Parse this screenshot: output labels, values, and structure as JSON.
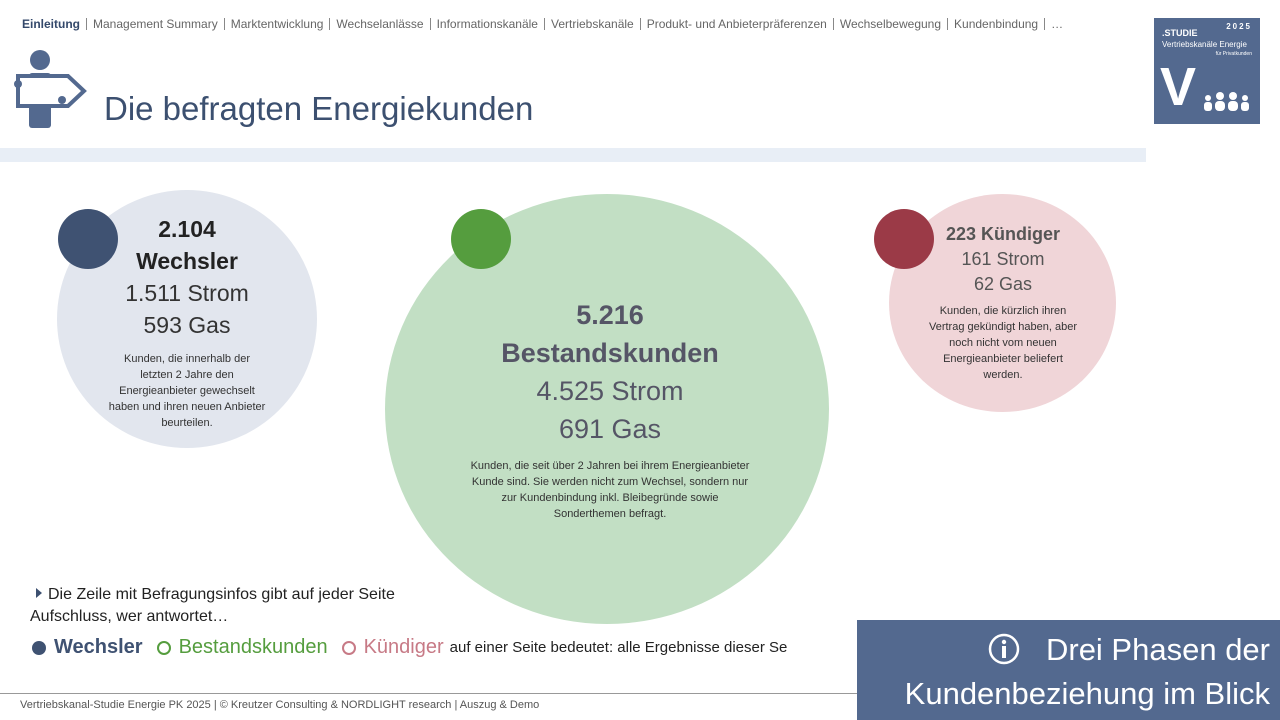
{
  "nav": {
    "items": [
      "Einleitung",
      "Management Summary",
      "Marktentwicklung",
      "Wechselanlässe",
      "Informationskanäle",
      "Vertriebskanäle",
      "Produkt- und Anbieterpräferenzen",
      "Wechselbewegung",
      "Kundenbindung",
      "…"
    ]
  },
  "logo": {
    "label": ".STUDIE",
    "year": "2025",
    "line1": "Vertriebskanäle Energie",
    "line2": "für Privatkunden",
    "letter": "V"
  },
  "title": "Die befragten Energiekunden",
  "circles": [
    {
      "number": "2.104",
      "label": "Wechsler",
      "strom": "1.511 Strom",
      "gas": "593 Gas",
      "description": "Kunden, die innerhalb der letzten 2 Jahre den Energieanbieter gewechselt haben und ihren neuen Anbieter beurteilen."
    },
    {
      "number": "5.216",
      "label": "Bestandskunden",
      "strom": "4.525 Strom",
      "gas": "691 Gas",
      "description": "Kunden, die seit über 2 Jahren bei ihrem Energieanbieter Kunde sind. Sie werden nicht zum Wechsel, sondern nur zur Kundenbindung inkl. Bleibegründe sowie Sonderthemen befragt."
    },
    {
      "headline": "223 Kündiger",
      "strom": "161 Strom",
      "gas": "62 Gas",
      "description": "Kunden, die kürzlich ihren Vertrag gekündigt haben, aber noch nicht vom neuen Energieanbieter beliefert werden."
    }
  ],
  "note": "Die Zeile mit Befragungsinfos gibt auf jeder Seite Aufschluss, wer antwortet…",
  "legend": {
    "items": [
      "Wechsler",
      "Bestandskunden",
      "Kündiger"
    ],
    "suffix": "auf einer Seite bedeutet: alle Ergebnisse dieser Se"
  },
  "infobox": {
    "line1": "Drei Phasen der",
    "line2": "Kundenbeziehung im Blick"
  },
  "footer": "Vertriebskanal-Studie Energie PK 2025 | © Kreutzer Consulting & NORDLIGHT research | Auszug & Demo"
}
